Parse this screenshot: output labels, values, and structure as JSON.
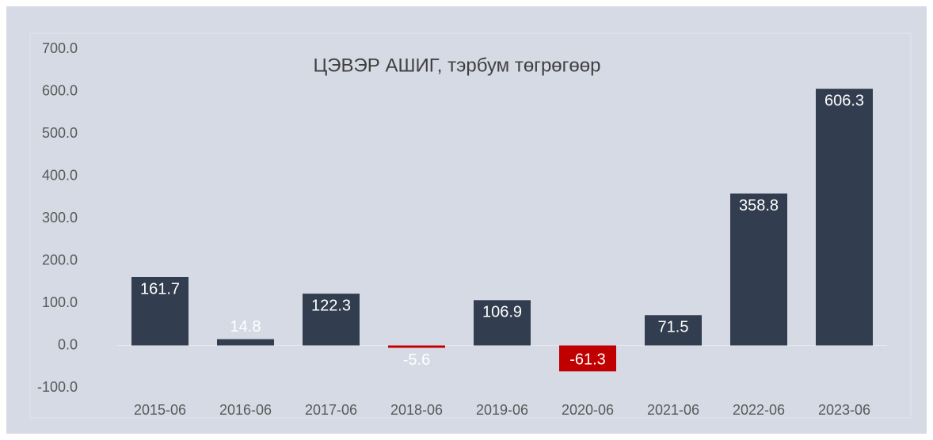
{
  "chart_data": {
    "type": "bar",
    "title": "ЦЭВЭР АШИГ, тэрбум төгрөгөөр",
    "categories": [
      "2015-06",
      "2016-06",
      "2017-06",
      "2018-06",
      "2019-06",
      "2020-06",
      "2021-06",
      "2022-06",
      "2023-06"
    ],
    "values": [
      161.7,
      14.8,
      122.3,
      -5.6,
      106.9,
      -61.3,
      71.5,
      358.8,
      606.3
    ],
    "color": "#323d4f",
    "negative_color": "#c00000",
    "ylim": [
      -100,
      700
    ],
    "yticks": [
      {
        "value": -100,
        "label": "-100.0"
      },
      {
        "value": 0,
        "label": "0.0"
      },
      {
        "value": 100,
        "label": "100.0"
      },
      {
        "value": 200,
        "label": "200.0"
      },
      {
        "value": 300,
        "label": "300.0"
      },
      {
        "value": 400,
        "label": "400.0"
      },
      {
        "value": 500,
        "label": "500.0"
      },
      {
        "value": 600,
        "label": "600.0"
      },
      {
        "value": 700,
        "label": "700.0"
      }
    ],
    "grid": false
  }
}
